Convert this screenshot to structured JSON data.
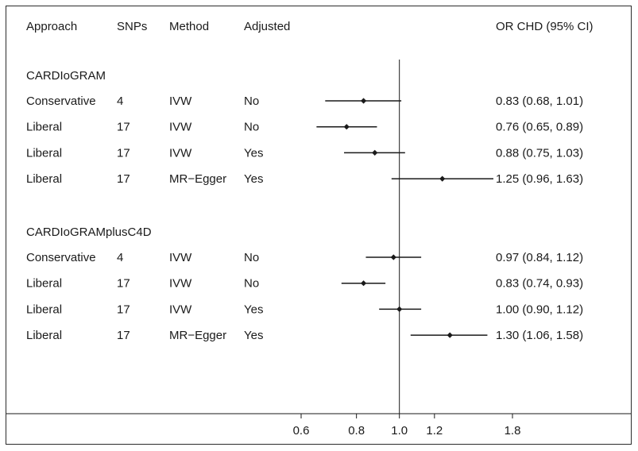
{
  "chart_data": {
    "type": "forest",
    "columns": {
      "approach": "Approach",
      "snps": "SNPs",
      "method": "Method",
      "adjusted": "Adjusted",
      "or": "OR CHD (95% CI)"
    },
    "x_scale": "log",
    "reference_line": 1.0,
    "x_ticks": [
      0.6,
      0.8,
      1.0,
      1.2,
      1.8
    ],
    "x_tick_labels": [
      "0.6",
      "0.8",
      "1.0",
      "1.2",
      "1.8"
    ],
    "xlim": [
      0.6,
      1.8
    ],
    "groups": [
      {
        "name": "CARDIoGRAM",
        "rows": [
          {
            "approach": "Conservative",
            "snps": "4",
            "method": "IVW",
            "adjusted": "No",
            "or": 0.83,
            "lo": 0.68,
            "hi": 1.01,
            "label": "0.83 (0.68, 1.01)"
          },
          {
            "approach": "Liberal",
            "snps": "17",
            "method": "IVW",
            "adjusted": "No",
            "or": 0.76,
            "lo": 0.65,
            "hi": 0.89,
            "label": "0.76 (0.65, 0.89)"
          },
          {
            "approach": "Liberal",
            "snps": "17",
            "method": "IVW",
            "adjusted": "Yes",
            "or": 0.88,
            "lo": 0.75,
            "hi": 1.03,
            "label": "0.88 (0.75, 1.03)"
          },
          {
            "approach": "Liberal",
            "snps": "17",
            "method": "MR−Egger",
            "adjusted": "Yes",
            "or": 1.25,
            "lo": 0.96,
            "hi": 1.63,
            "label": "1.25 (0.96, 1.63)"
          }
        ]
      },
      {
        "name": "CARDIoGRAMplusC4D",
        "rows": [
          {
            "approach": "Conservative",
            "snps": "4",
            "method": "IVW",
            "adjusted": "No",
            "or": 0.97,
            "lo": 0.84,
            "hi": 1.12,
            "label": "0.97 (0.84, 1.12)"
          },
          {
            "approach": "Liberal",
            "snps": "17",
            "method": "IVW",
            "adjusted": "No",
            "or": 0.83,
            "lo": 0.74,
            "hi": 0.93,
            "label": "0.83 (0.74, 0.93)"
          },
          {
            "approach": "Liberal",
            "snps": "17",
            "method": "IVW",
            "adjusted": "Yes",
            "or": 1.0,
            "lo": 0.9,
            "hi": 1.12,
            "label": "1.00 (0.90, 1.12)"
          },
          {
            "approach": "Liberal",
            "snps": "17",
            "method": "MR−Egger",
            "adjusted": "Yes",
            "or": 1.3,
            "lo": 1.06,
            "hi": 1.58,
            "label": "1.30 (1.06, 1.58)"
          }
        ]
      }
    ]
  }
}
